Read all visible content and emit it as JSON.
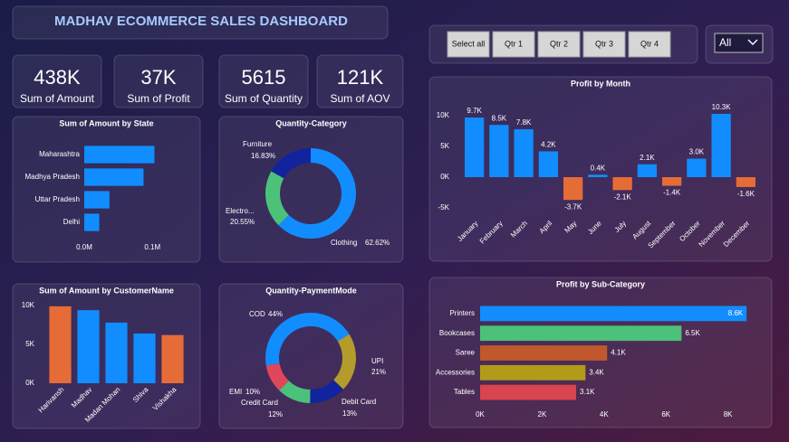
{
  "header": {
    "title": "MADHAV ECOMMERCE SALES DASHBOARD"
  },
  "filters": {
    "buttons": [
      "Select all",
      "Qtr 1",
      "Qtr 2",
      "Qtr 3",
      "Qtr 4"
    ],
    "dropdown": "All"
  },
  "kpis": [
    {
      "value": "438K",
      "label": "Sum of Amount"
    },
    {
      "value": "37K",
      "label": "Sum of Profit"
    },
    {
      "value": "5615",
      "label": "Sum of Quantity"
    },
    {
      "value": "121K",
      "label": "Sum of AOV"
    }
  ],
  "chart_data": [
    {
      "type": "bar",
      "orientation": "horizontal",
      "title": "Sum of Amount by State",
      "categories": [
        "Maharashtra",
        "Madhya Pradesh",
        "Uttar Pradesh",
        "Delhi"
      ],
      "values": [
        103000,
        87000,
        37000,
        22000
      ],
      "color": "#118dff",
      "xlim": [
        0,
        105000
      ],
      "xticks": [
        {
          "value": 0,
          "label": "0.0M"
        },
        {
          "value": 100000,
          "label": "0.1M"
        }
      ]
    },
    {
      "type": "donut",
      "title": "Quantity-Category",
      "categories": [
        "Clothing",
        "Electro...",
        "Furniture"
      ],
      "values": [
        62.62,
        20.55,
        16.83
      ],
      "value_labels": [
        "62.62%",
        "20.55%",
        "16.83%"
      ],
      "colors": [
        "#118dff",
        "#4cc17a",
        "#12239e"
      ]
    },
    {
      "type": "bar",
      "orientation": "vertical",
      "title": "Sum of Amount by CustomerName",
      "categories": [
        "Harivansh",
        "Madhav",
        "Madan Mohan",
        "Shiva",
        "Vishakha"
      ],
      "values": [
        9900,
        9400,
        7800,
        6400,
        6200
      ],
      "colors": [
        "#e66c37",
        "#118dff",
        "#118dff",
        "#118dff",
        "#e66c37"
      ],
      "ylim": [
        0,
        10000
      ],
      "yticks": [
        {
          "value": 0,
          "label": "0K"
        },
        {
          "value": 5000,
          "label": "5K"
        },
        {
          "value": 10000,
          "label": "10K"
        }
      ]
    },
    {
      "type": "donut",
      "title": "Quantity-PaymentMode",
      "categories": [
        "COD",
        "UPI",
        "Debit Card",
        "Credit Card",
        "EMI"
      ],
      "values": [
        44,
        21,
        13,
        12,
        10
      ],
      "value_labels": [
        "44%",
        "21%",
        "13%",
        "12%",
        "10%"
      ],
      "colors": [
        "#118dff",
        "#b39b2c",
        "#12239e",
        "#4cc17a",
        "#e0475a"
      ]
    },
    {
      "type": "bar",
      "orientation": "vertical",
      "title": "Profit by Month",
      "categories": [
        "January",
        "February",
        "March",
        "April",
        "May",
        "June",
        "July",
        "August",
        "September",
        "October",
        "November",
        "December"
      ],
      "values": [
        9700,
        8500,
        7800,
        4200,
        -3700,
        400,
        -2100,
        2100,
        -1400,
        3000,
        10300,
        -1600
      ],
      "value_labels": [
        "9.7K",
        "8.5K",
        "7.8K",
        "4.2K",
        "-3.7K",
        "0.4K",
        "-2.1K",
        "2.1K",
        "-1.4K",
        "3.0K",
        "10.3K",
        "-1.6K"
      ],
      "colors": [
        "#118dff",
        "#118dff",
        "#118dff",
        "#118dff",
        "#e66c37",
        "#118dff",
        "#e66c37",
        "#118dff",
        "#e66c37",
        "#118dff",
        "#118dff",
        "#e66c37"
      ],
      "ylim": [
        -6000,
        11000
      ],
      "yticks": [
        {
          "value": -5000,
          "label": "-5K"
        },
        {
          "value": 0,
          "label": "0K"
        },
        {
          "value": 5000,
          "label": "5K"
        },
        {
          "value": 10000,
          "label": "10K"
        }
      ]
    },
    {
      "type": "bar",
      "orientation": "horizontal",
      "title": "Profit by Sub-Category",
      "categories": [
        "Printers",
        "Bookcases",
        "Saree",
        "Accessories",
        "Tables"
      ],
      "values": [
        8600,
        6500,
        4100,
        3400,
        3100
      ],
      "value_labels": [
        "8.6K",
        "6.5K",
        "4.1K",
        "3.4K",
        "3.1K"
      ],
      "colors": [
        "#118dff",
        "#4cc17a",
        "#c0582e",
        "#b39b1a",
        "#d9444f"
      ],
      "xlim": [
        0,
        8800
      ],
      "xticks": [
        {
          "value": 0,
          "label": "0K"
        },
        {
          "value": 2000,
          "label": "2K"
        },
        {
          "value": 4000,
          "label": "4K"
        },
        {
          "value": 6000,
          "label": "6K"
        },
        {
          "value": 8000,
          "label": "8K"
        }
      ]
    }
  ]
}
